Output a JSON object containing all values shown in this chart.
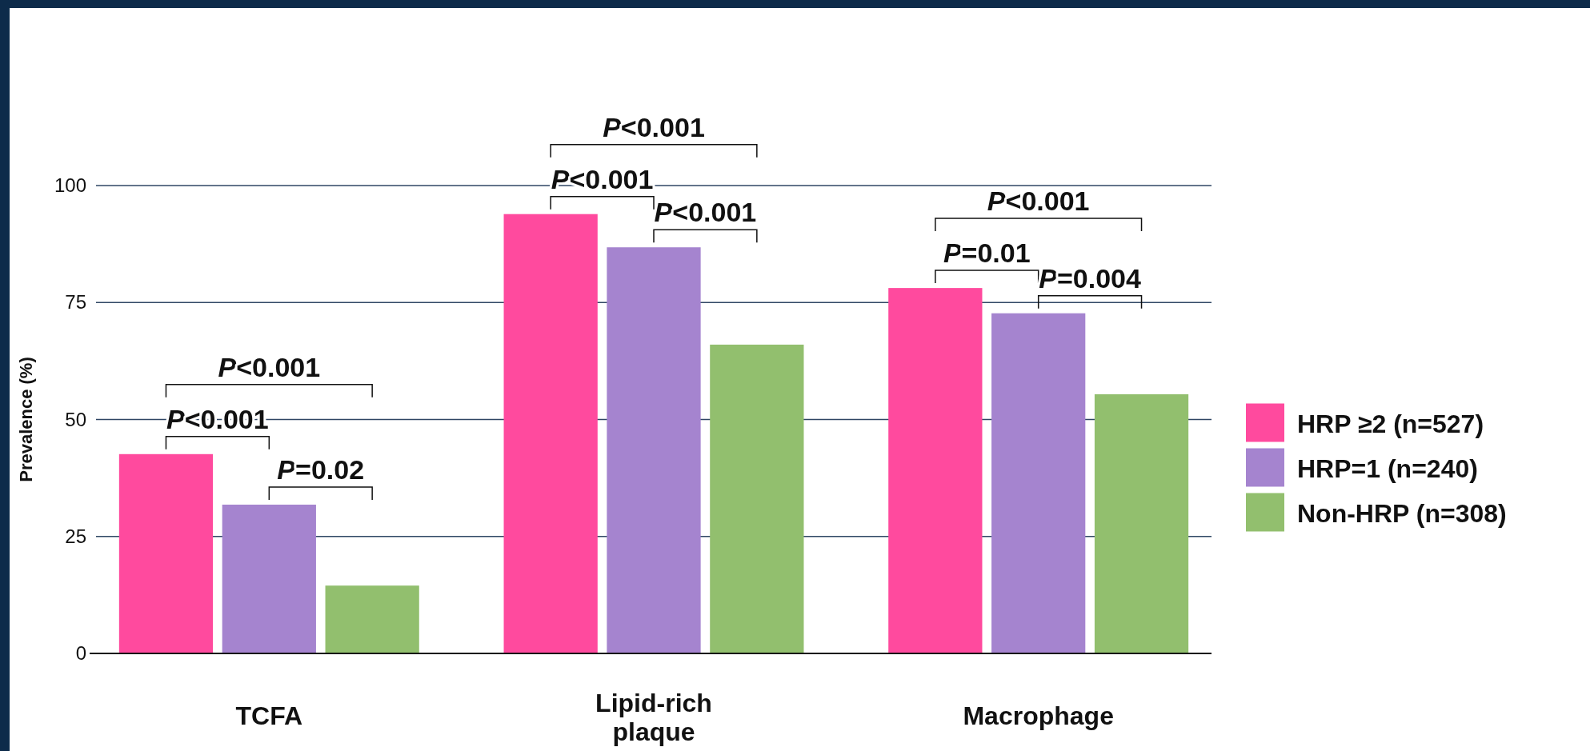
{
  "chart_data": {
    "type": "bar",
    "ylabel": "Prevalence (%)",
    "categories": [
      "TCFA",
      "Lipid-rich plaque",
      "Macrophage"
    ],
    "series": [
      {
        "name": "HRP ≥2 (n=527)",
        "color": "#ff4a9e",
        "values": [
          42.6,
          93.9,
          78.1
        ]
      },
      {
        "name": "HRP=1 (n=240)",
        "color": "#a584cf",
        "values": [
          31.8,
          86.8,
          72.7
        ]
      },
      {
        "name": "Non-HRP (n=308)",
        "color": "#92bf6e",
        "values": [
          14.5,
          66.0,
          55.4
        ]
      }
    ],
    "ylim": [
      0,
      100
    ],
    "yticks": [
      0,
      25,
      50,
      75,
      100
    ],
    "grid": "y",
    "legend": "right",
    "annotations": [
      "P<0.001",
      "P=0.02",
      "P<0.001",
      "P<0.001",
      "P<0.001",
      "P<0.001",
      "P=0.01",
      "P=0.004",
      "P<0.001"
    ]
  }
}
